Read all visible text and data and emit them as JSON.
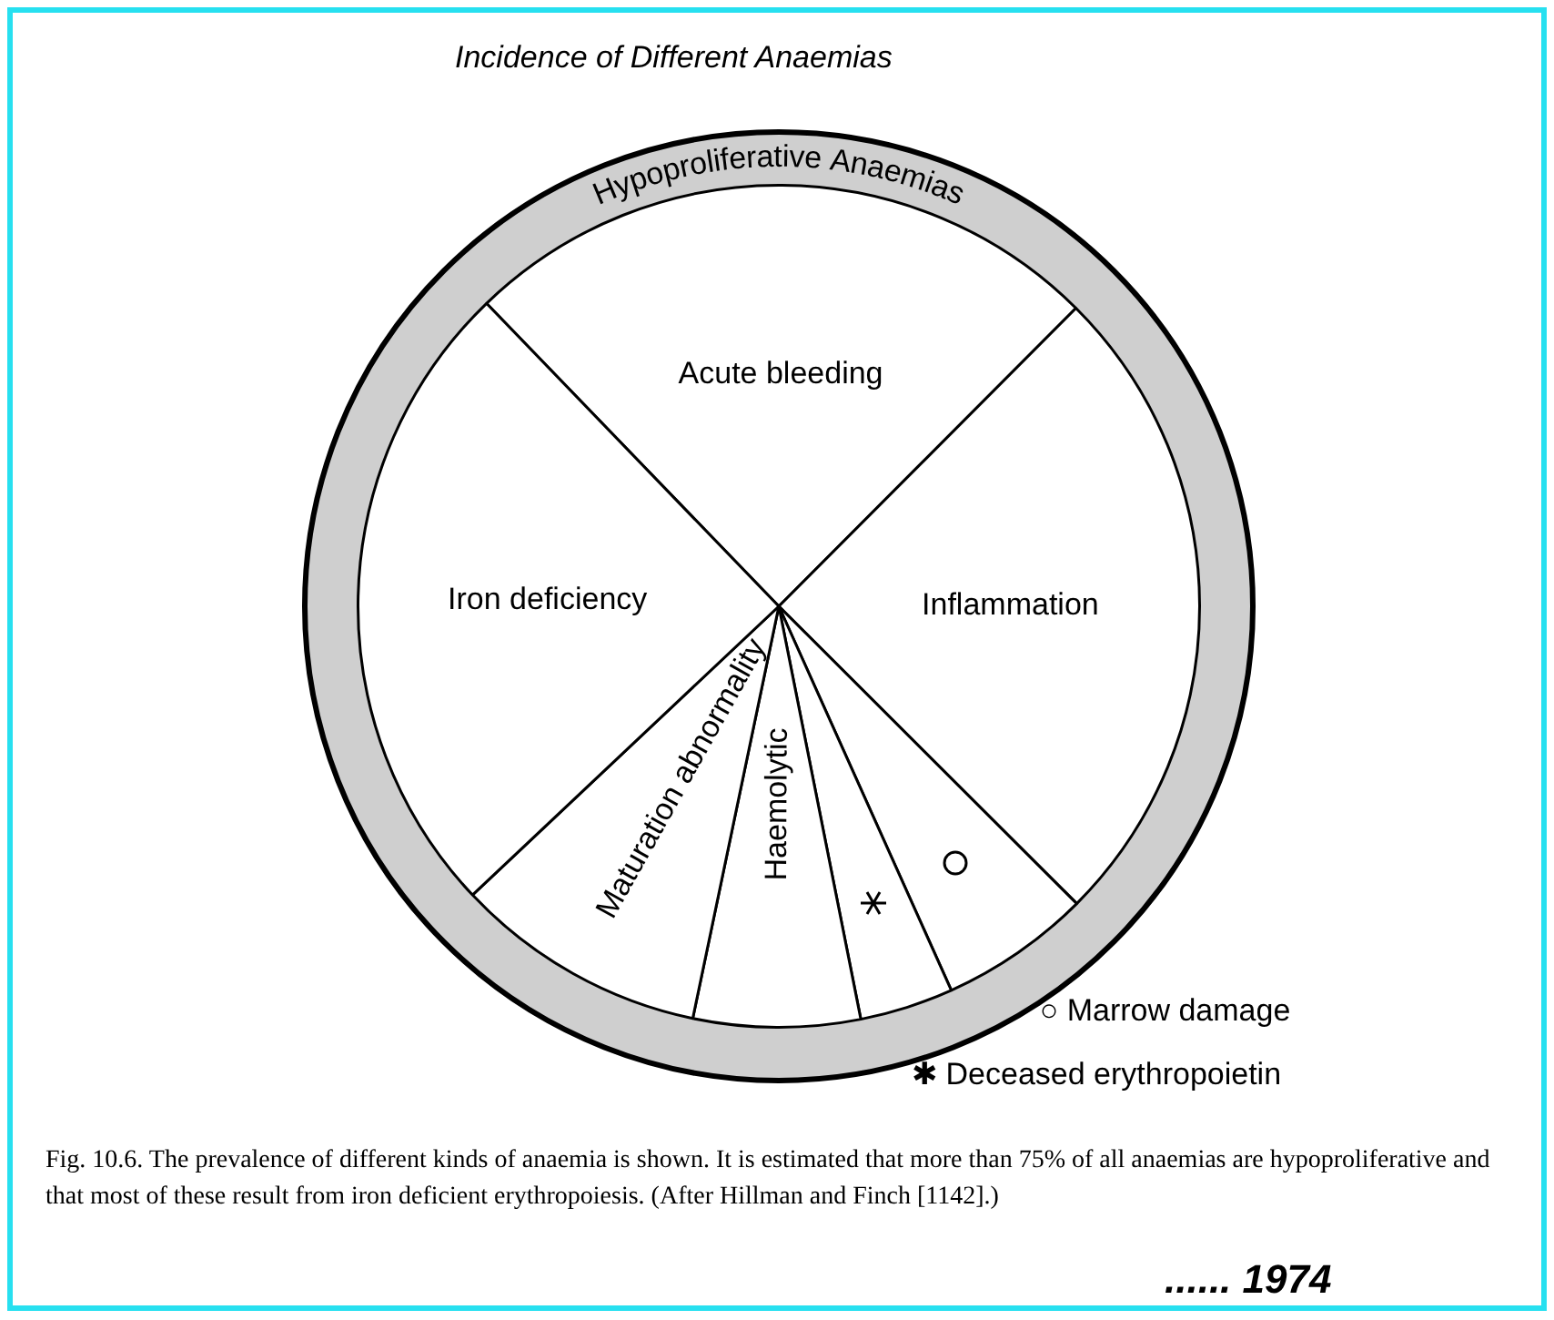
{
  "chart_data": {
    "type": "pie",
    "title": "Incidence of Different Anaemias",
    "categories": [
      "Acute bleeding",
      "Inflammation",
      "○ Marrow damage",
      "✱ Deceased erythropoietin",
      "Haemolytic",
      "Maturation abnormality",
      "Iron deficiency"
    ],
    "values": [
      24.7,
      25,
      5.8,
      3.6,
      6.4,
      9.7,
      24.8
    ],
    "colors": [
      "#ffffff",
      "#ffffff",
      "#ffffff",
      "#ffffff",
      "#ffffff",
      "#ffffff",
      "#ffffff"
    ],
    "legend": false,
    "annotations": [
      "Hypoproliferative Anaemias",
      "Fig. 10.6. The prevalence of different kinds of anaemia is shown. It is estimated that more than 75% of all anaemias are hypoproliferative and that most of these result from iron deficient erythropoiesis. (After Hillman and Finch [1142].)",
      "...... 1974"
    ]
  }
}
